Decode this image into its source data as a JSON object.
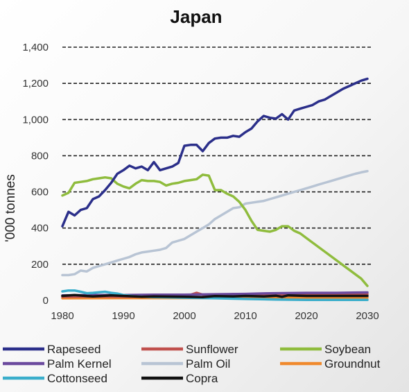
{
  "chart_data": {
    "type": "line",
    "title": "Japan",
    "xlabel": "",
    "ylabel": "'000 tonnes",
    "xlim": [
      1980,
      2030
    ],
    "ylim": [
      0,
      1400
    ],
    "xticks": [
      1980,
      1990,
      2000,
      2010,
      2020,
      2030
    ],
    "xtick_labels": [
      "1980",
      "1990",
      "2000",
      "2010",
      "2020",
      "2030"
    ],
    "yticks": [
      0,
      200,
      400,
      600,
      800,
      1000,
      1200,
      1400
    ],
    "ytick_labels": [
      "0",
      "200",
      "400",
      "600",
      "800",
      "1,000",
      "1,200",
      "1,400"
    ],
    "grid": "horizontal dashed",
    "legend_position": "bottom",
    "series": [
      {
        "name": "Rapeseed",
        "color": "#2b2f8a",
        "x": [
          1980,
          1981,
          1982,
          1983,
          1984,
          1985,
          1986,
          1987,
          1988,
          1989,
          1990,
          1991,
          1992,
          1993,
          1994,
          1995,
          1996,
          1997,
          1998,
          1999,
          2000,
          2001,
          2002,
          2003,
          2004,
          2005,
          2006,
          2007,
          2008,
          2009,
          2010,
          2011,
          2012,
          2013,
          2014,
          2015,
          2016,
          2017,
          2018,
          2019,
          2020,
          2021,
          2022,
          2023,
          2024,
          2025,
          2026,
          2027,
          2028,
          2029,
          2030
        ],
        "values": [
          410,
          490,
          470,
          500,
          510,
          560,
          575,
          610,
          650,
          700,
          720,
          745,
          730,
          740,
          720,
          765,
          720,
          730,
          740,
          760,
          855,
          860,
          860,
          825,
          870,
          895,
          900,
          900,
          910,
          905,
          930,
          950,
          990,
          1020,
          1010,
          1005,
          1030,
          1000,
          1050,
          1060,
          1070,
          1080,
          1100,
          1110,
          1130,
          1150,
          1170,
          1185,
          1200,
          1215,
          1225
        ]
      },
      {
        "name": "Sunflower",
        "color": "#c0504d",
        "x": [
          1980,
          1985,
          1990,
          1995,
          2000,
          2002,
          2003,
          2005,
          2008,
          2010,
          2015,
          2020,
          2025,
          2030
        ],
        "values": [
          20,
          22,
          20,
          21,
          20,
          42,
          32,
          28,
          35,
          30,
          32,
          35,
          35,
          35
        ]
      },
      {
        "name": "Soybean",
        "color": "#8fbc3d",
        "x": [
          1980,
          1981,
          1982,
          1983,
          1984,
          1985,
          1986,
          1987,
          1988,
          1989,
          1990,
          1991,
          1992,
          1993,
          1994,
          1995,
          1996,
          1997,
          1998,
          1999,
          2000,
          2001,
          2002,
          2003,
          2004,
          2005,
          2006,
          2007,
          2008,
          2009,
          2010,
          2011,
          2012,
          2013,
          2014,
          2015,
          2016,
          2017,
          2018,
          2019,
          2020,
          2021,
          2022,
          2023,
          2024,
          2025,
          2026,
          2027,
          2028,
          2029,
          2030
        ],
        "values": [
          580,
          595,
          650,
          655,
          660,
          670,
          675,
          680,
          675,
          645,
          630,
          620,
          645,
          665,
          660,
          660,
          655,
          635,
          645,
          650,
          660,
          665,
          670,
          695,
          690,
          610,
          610,
          590,
          575,
          545,
          500,
          440,
          390,
          385,
          380,
          390,
          410,
          410,
          385,
          370,
          345,
          320,
          295,
          270,
          245,
          220,
          195,
          170,
          145,
          120,
          80
        ]
      },
      {
        "name": "Palm Kernel",
        "color": "#6b4a9e",
        "x": [
          1980,
          1985,
          1990,
          1995,
          2000,
          2005,
          2010,
          2012,
          2015,
          2020,
          2025,
          2030
        ],
        "values": [
          28,
          30,
          30,
          32,
          32,
          34,
          36,
          38,
          40,
          42,
          42,
          44
        ]
      },
      {
        "name": "Palm Oil",
        "color": "#b8c4d4",
        "x": [
          1980,
          1981,
          1982,
          1983,
          1984,
          1985,
          1986,
          1987,
          1988,
          1989,
          1990,
          1991,
          1992,
          1993,
          1994,
          1995,
          1996,
          1997,
          1998,
          1999,
          2000,
          2001,
          2002,
          2003,
          2004,
          2005,
          2006,
          2007,
          2008,
          2009,
          2010,
          2011,
          2012,
          2013,
          2014,
          2015,
          2016,
          2017,
          2018,
          2019,
          2020,
          2021,
          2022,
          2023,
          2024,
          2025,
          2026,
          2027,
          2028,
          2029,
          2030
        ],
        "values": [
          140,
          140,
          145,
          165,
          160,
          180,
          190,
          200,
          210,
          220,
          230,
          240,
          255,
          265,
          270,
          275,
          280,
          290,
          320,
          330,
          340,
          360,
          380,
          400,
          420,
          450,
          470,
          490,
          510,
          515,
          535,
          540,
          545,
          550,
          560,
          570,
          580,
          590,
          600,
          610,
          620,
          630,
          640,
          650,
          660,
          670,
          680,
          690,
          700,
          708,
          715
        ]
      },
      {
        "name": "Groundnut",
        "color": "#f0892c",
        "x": [
          1980,
          1990,
          2000,
          2010,
          2020,
          2030
        ],
        "values": [
          12,
          13,
          13,
          14,
          15,
          15
        ]
      },
      {
        "name": "Cottonseed",
        "color": "#3aaecb",
        "x": [
          1980,
          1981,
          1982,
          1983,
          1984,
          1985,
          1986,
          1987,
          1988,
          1989,
          1990,
          1992,
          1995,
          2000,
          2005,
          2010,
          2015,
          2020,
          2025,
          2030
        ],
        "values": [
          50,
          55,
          55,
          48,
          40,
          42,
          45,
          48,
          42,
          38,
          30,
          22,
          18,
          15,
          12,
          8,
          5,
          3,
          3,
          3
        ]
      },
      {
        "name": "Copra",
        "color": "#111111",
        "x": [
          1980,
          1982,
          1985,
          1988,
          1990,
          1993,
          1995,
          2000,
          2003,
          2005,
          2008,
          2010,
          2013,
          2015,
          2016,
          2017,
          2020,
          2025,
          2030
        ],
        "values": [
          25,
          30,
          22,
          28,
          25,
          20,
          22,
          20,
          18,
          24,
          22,
          25,
          22,
          26,
          20,
          28,
          25,
          25,
          25
        ]
      }
    ]
  }
}
